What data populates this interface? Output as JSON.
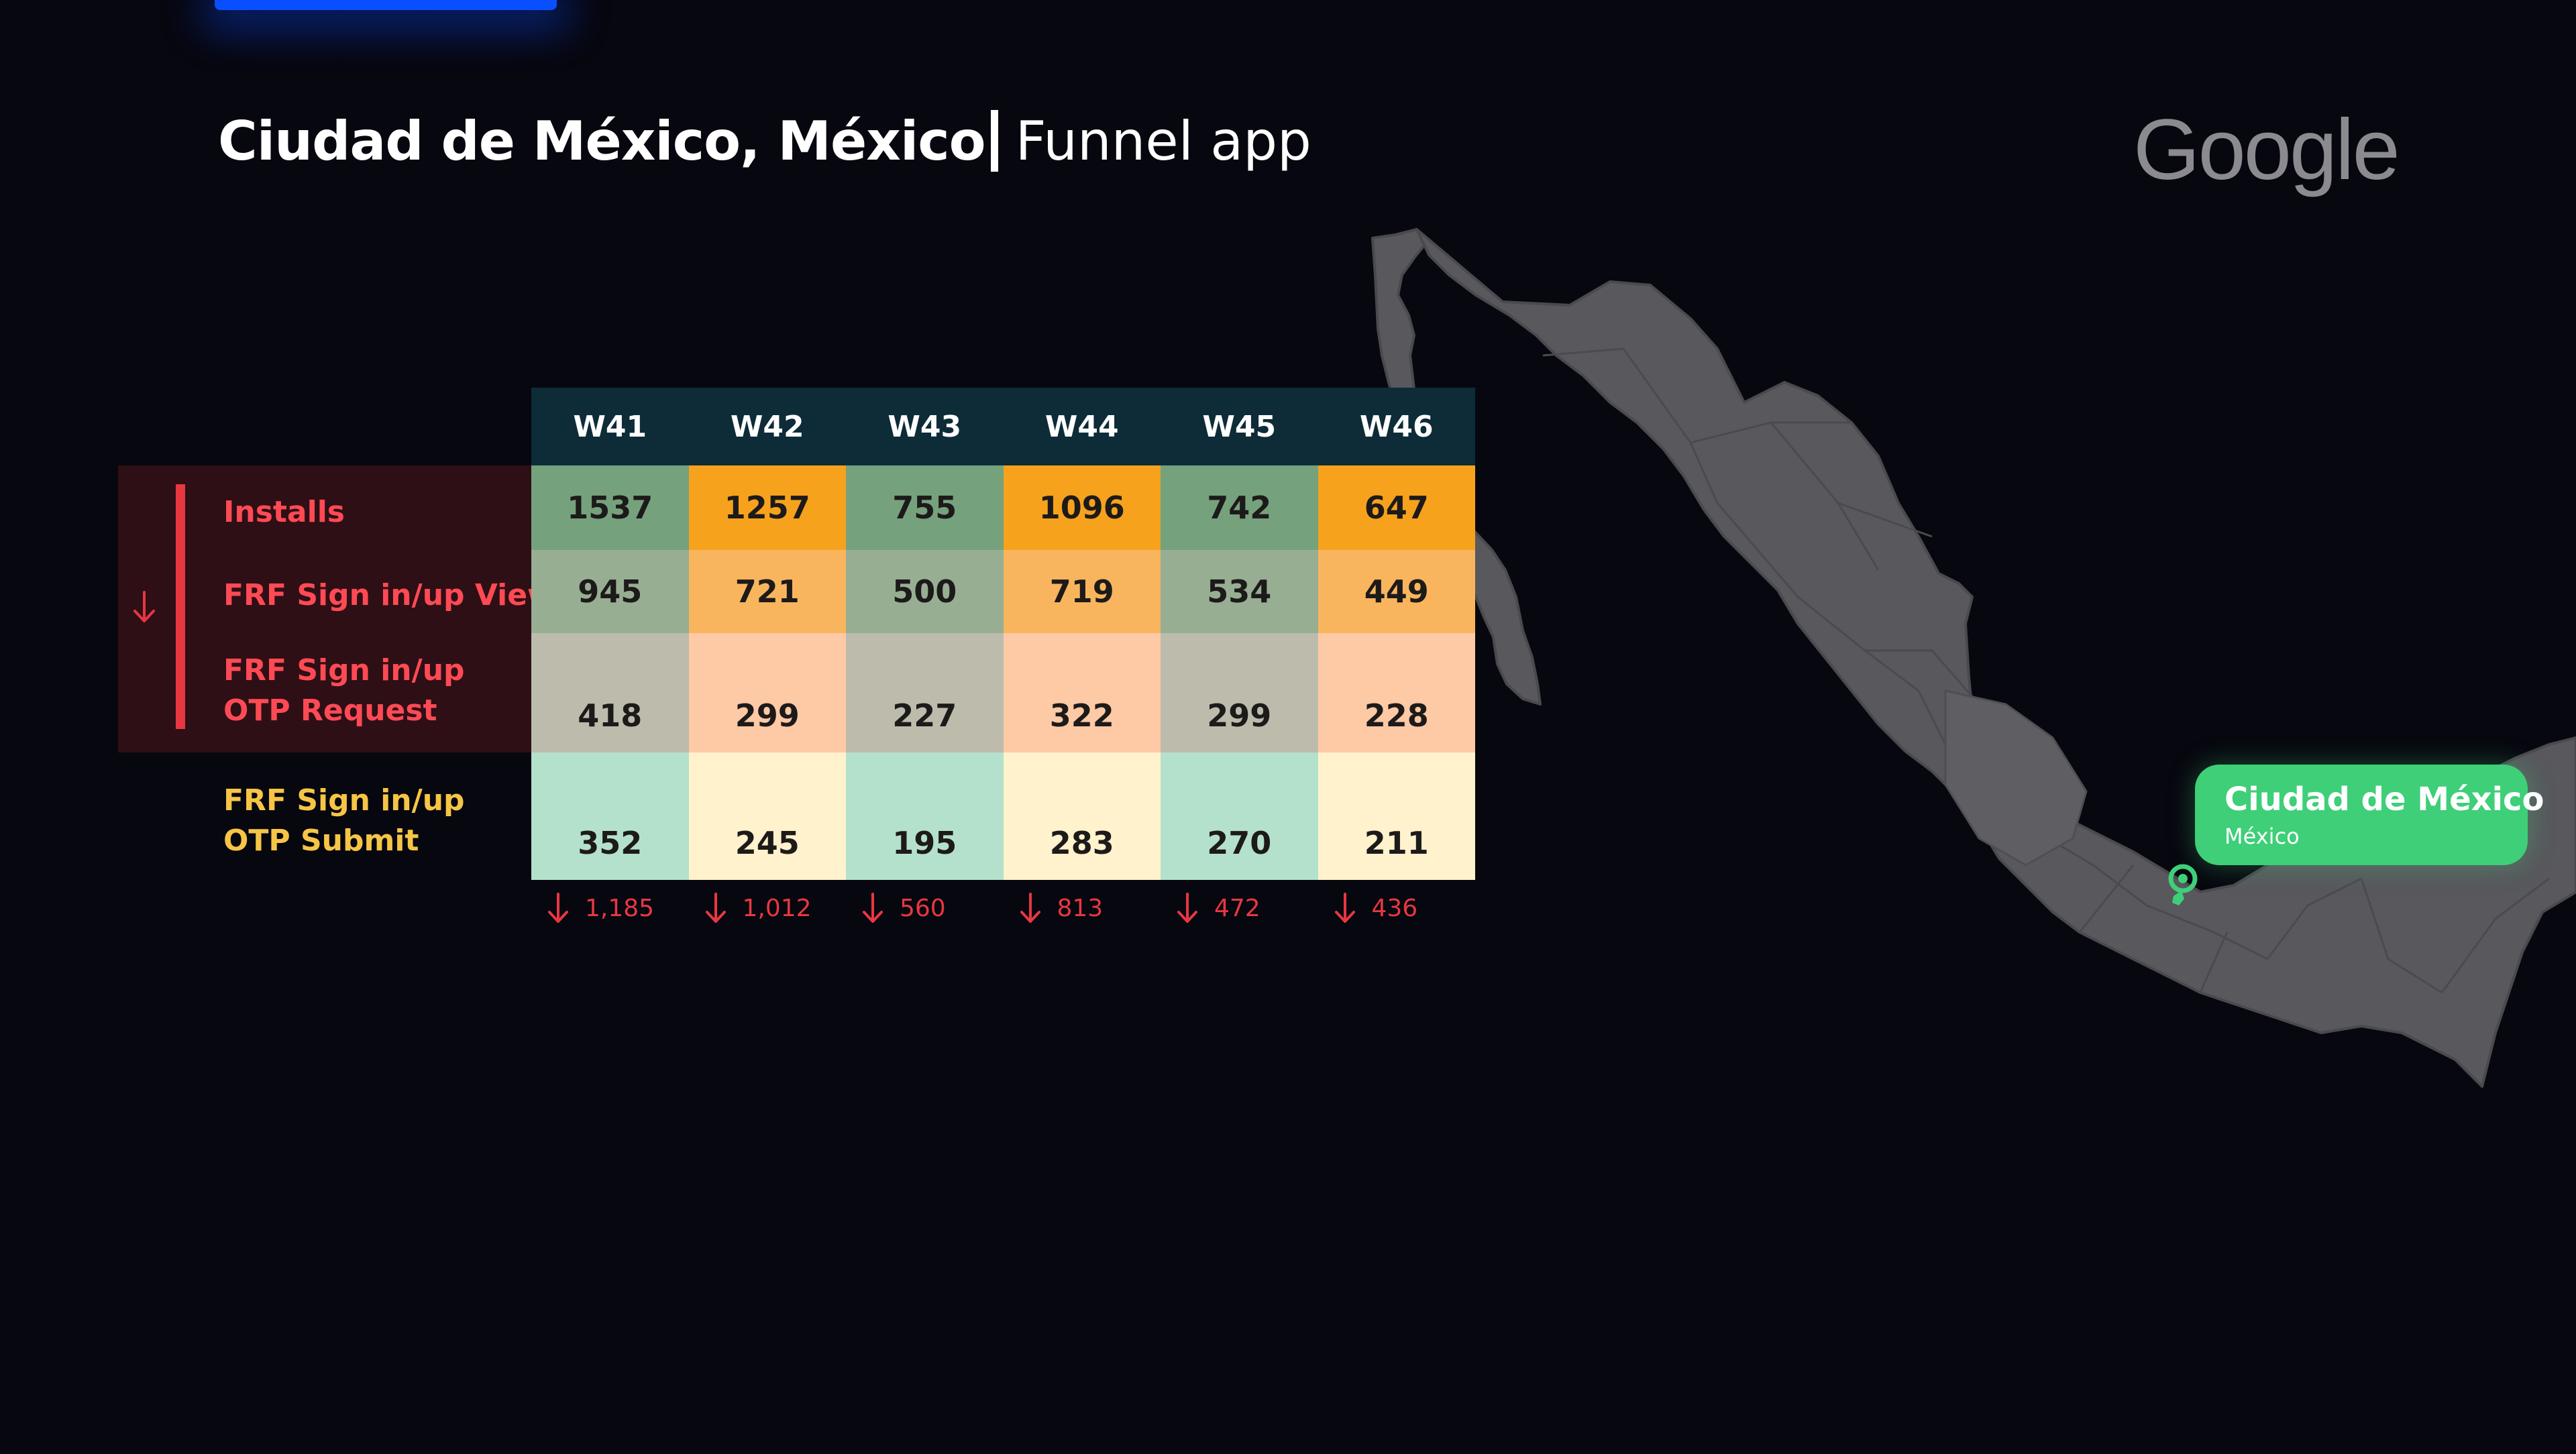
{
  "header": {
    "city_title": "Ciudad de México, México",
    "subtitle": "Funnel app",
    "logo_text": "Google"
  },
  "table": {
    "weeks": [
      "W41",
      "W42",
      "W43",
      "W44",
      "W45",
      "W46"
    ],
    "rows": [
      {
        "label": "Installs",
        "values": [
          "1537",
          "1257",
          "755",
          "1096",
          "742",
          "647"
        ]
      },
      {
        "label": "FRF Sign in/up View",
        "values": [
          "945",
          "721",
          "500",
          "719",
          "534",
          "449"
        ]
      },
      {
        "label": "FRF Sign in/up OTP Request",
        "values": [
          "418",
          "299",
          "227",
          "322",
          "299",
          "228"
        ]
      },
      {
        "label": "FRF Sign in/up OTP Submit",
        "values": [
          "352",
          "245",
          "195",
          "283",
          "270",
          "211"
        ]
      }
    ],
    "drops": [
      "1,185",
      "1,012",
      "560",
      "813",
      "472",
      "436"
    ]
  },
  "map": {
    "callout_title": "Ciudad de México",
    "callout_subtitle": "México"
  },
  "colors": {
    "background": "#07070f",
    "header_bg": "#0d2c38",
    "accent_red": "#e83741",
    "label_yellow": "#f6c545",
    "callout_green": "#3ecf78",
    "top_bar_blue": "#0a4fff",
    "map_fill": "#58585d",
    "odd_col_row1": "#76a17d",
    "even_col_row1": "#f6a21d",
    "odd_col_row2": "#97ae93",
    "even_col_row2": "#f9b55d",
    "odd_col_row3": "#bdbcac",
    "even_col_row3": "#fec9a5",
    "odd_col_row4": "#b4e1cb",
    "even_col_row4": "#fff2cc"
  }
}
